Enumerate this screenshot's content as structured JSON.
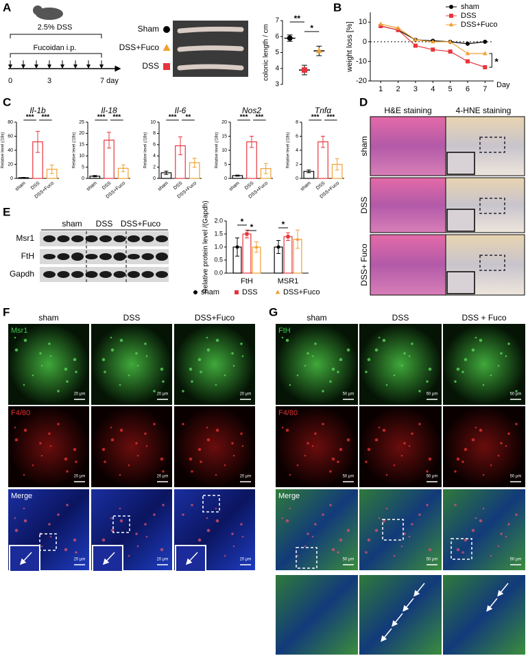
{
  "panel_letters": [
    "A",
    "B",
    "C",
    "D",
    "E",
    "F",
    "G"
  ],
  "panel_a": {
    "treatment": "2.5% DSS",
    "injection": "Fucoidan i.p.",
    "days": [
      "0",
      "3",
      "7 day"
    ]
  },
  "panel_d": {
    "columns": [
      "H&E staining",
      "4-HNE staining"
    ],
    "rows": [
      "sham",
      "DSS",
      "DSS+ Fuco"
    ]
  },
  "panel_e": {
    "proteins": [
      "Msr1",
      "FtH",
      "Gapdh"
    ]
  },
  "panel_f": {
    "columns": [
      "sham",
      "DSS",
      "DSS+Fuco"
    ],
    "rows": [
      "Msr1",
      "F4/80",
      "Merge"
    ],
    "scale_bar": "20 μm"
  },
  "panel_g": {
    "columns": [
      "sham",
      "DSS",
      "DSS + Fuco"
    ],
    "rows": [
      "FtH",
      "F4/80",
      "Merge"
    ],
    "scale_bar": "50 μm"
  },
  "chart_data": [
    {
      "type": "dot",
      "ylabel": "colonic length / cm",
      "ylim": [
        3,
        7
      ],
      "yticks": [
        3,
        4,
        5,
        6,
        7
      ],
      "series": [
        {
          "name": "Sham",
          "color": "#000000",
          "marker": "circle",
          "values": [
            5.9
          ],
          "errors": [
            0.2
          ]
        },
        {
          "name": "DSS",
          "color": "#e8343c",
          "marker": "square",
          "values": [
            3.9
          ],
          "errors": [
            0.3
          ]
        },
        {
          "name": "DSS+Fuco",
          "color": "#f0a030",
          "marker": "triangle",
          "values": [
            5.1
          ],
          "errors": [
            0.3
          ]
        }
      ],
      "annotations": [
        "**",
        "*"
      ]
    },
    {
      "type": "line",
      "ylabel": "weight loss [%]",
      "xlabel": "Day",
      "x": [
        1,
        2,
        3,
        4,
        5,
        6,
        7
      ],
      "xlim": [
        0.4,
        7.5
      ],
      "xticks": [
        1,
        2,
        3,
        4,
        5,
        6,
        7
      ],
      "ylim": [
        -20,
        15
      ],
      "yticks": [
        -20,
        -10,
        0,
        10
      ],
      "series": [
        {
          "name": "sham",
          "color": "#000000",
          "marker": "circle",
          "values": [
            8,
            6,
            1,
            0.5,
            0,
            -1,
            0
          ]
        },
        {
          "name": "DSS",
          "color": "#e8343c",
          "marker": "square",
          "values": [
            8,
            6,
            -2,
            -4,
            -5,
            -10,
            -13
          ]
        },
        {
          "name": "DSS+Fuco",
          "color": "#f0a030",
          "marker": "triangle",
          "values": [
            9,
            7,
            1,
            0,
            0,
            -6,
            -6
          ]
        }
      ],
      "annotations": [
        "*"
      ]
    },
    {
      "type": "bar",
      "title": "Il-1b",
      "ylabel": "Relative level (/18s)",
      "categories": [
        "sham",
        "DSS",
        "DSS+Fuco"
      ],
      "colors": [
        "#000000",
        "#e8343c",
        "#f0a030"
      ],
      "values": [
        1,
        52,
        13
      ],
      "errors": [
        0.5,
        15,
        6
      ],
      "ylim": [
        0,
        80
      ],
      "yticks": [
        0,
        20,
        40,
        60,
        80
      ],
      "annotations": [
        "***",
        "***"
      ]
    },
    {
      "type": "bar",
      "title": "Il-18",
      "ylabel": "Relative level (/18s)",
      "categories": [
        "sham",
        "DSS",
        "DSS+Fuco"
      ],
      "colors": [
        "#000000",
        "#e8343c",
        "#f0a030"
      ],
      "values": [
        1,
        17,
        4.5
      ],
      "errors": [
        0.3,
        3.5,
        1.5
      ],
      "ylim": [
        0,
        25
      ],
      "yticks": [
        0,
        5,
        10,
        15,
        20,
        25
      ],
      "annotations": [
        "***",
        "***"
      ]
    },
    {
      "type": "bar",
      "title": "Il-6",
      "ylabel": "Relative level (/18s)",
      "categories": [
        "sham",
        "DSS",
        "DSS+Fuco"
      ],
      "colors": [
        "#000000",
        "#e8343c",
        "#f0a030"
      ],
      "values": [
        1,
        5.8,
        2.8
      ],
      "errors": [
        0.3,
        1.6,
        0.8
      ],
      "ylim": [
        0,
        10
      ],
      "yticks": [
        0,
        2,
        4,
        6,
        8,
        10
      ],
      "annotations": [
        "***",
        "**"
      ]
    },
    {
      "type": "bar",
      "title": "Nos2",
      "ylabel": "Relative level (/18s)",
      "categories": [
        "sham",
        "DSS",
        "DSS+Fuco"
      ],
      "colors": [
        "#000000",
        "#e8343c",
        "#f0a030"
      ],
      "values": [
        1,
        13,
        3.5
      ],
      "errors": [
        0.2,
        2,
        1.8
      ],
      "ylim": [
        0,
        20
      ],
      "yticks": [
        0,
        5,
        10,
        15,
        20
      ],
      "annotations": [
        "***",
        "***"
      ]
    },
    {
      "type": "bar",
      "title": "Tnfα",
      "ylabel": "Relative level (/18s)",
      "categories": [
        "sham",
        "DSS",
        "DSS+Fuco"
      ],
      "colors": [
        "#000000",
        "#e8343c",
        "#f0a030"
      ],
      "values": [
        1,
        5.2,
        2
      ],
      "errors": [
        0.2,
        0.8,
        0.8
      ],
      "ylim": [
        0,
        8
      ],
      "yticks": [
        0,
        2,
        4,
        6,
        8
      ],
      "annotations": [
        "***",
        "***"
      ]
    },
    {
      "type": "grouped_bar",
      "ylabel": "Relative protein level /(Gapdh)",
      "categories": [
        "FtH",
        "MSR1"
      ],
      "ylim": [
        0,
        2
      ],
      "yticks": [
        {
          "value": 0,
          "label": "0.0"
        },
        {
          "value": 0.5,
          "label": "0.5"
        },
        {
          "value": 1,
          "label": "1.0"
        },
        {
          "value": 1.5,
          "label": "1.5"
        },
        {
          "value": 2,
          "label": "2.0"
        }
      ],
      "series": [
        {
          "name": "sham",
          "color": "#000000",
          "marker": "circle",
          "values": [
            1.0,
            1.0
          ],
          "errors": [
            0.35,
            0.25
          ]
        },
        {
          "name": "DSS",
          "color": "#e8343c",
          "marker": "square",
          "values": [
            1.5,
            1.4
          ],
          "errors": [
            0.15,
            0.15
          ]
        },
        {
          "name": "DSS+Fuco",
          "color": "#f0a030",
          "marker": "triangle",
          "values": [
            1.0,
            1.3
          ],
          "errors": [
            0.2,
            0.35
          ]
        }
      ],
      "annotations": [
        "*",
        "*",
        "*"
      ]
    }
  ]
}
